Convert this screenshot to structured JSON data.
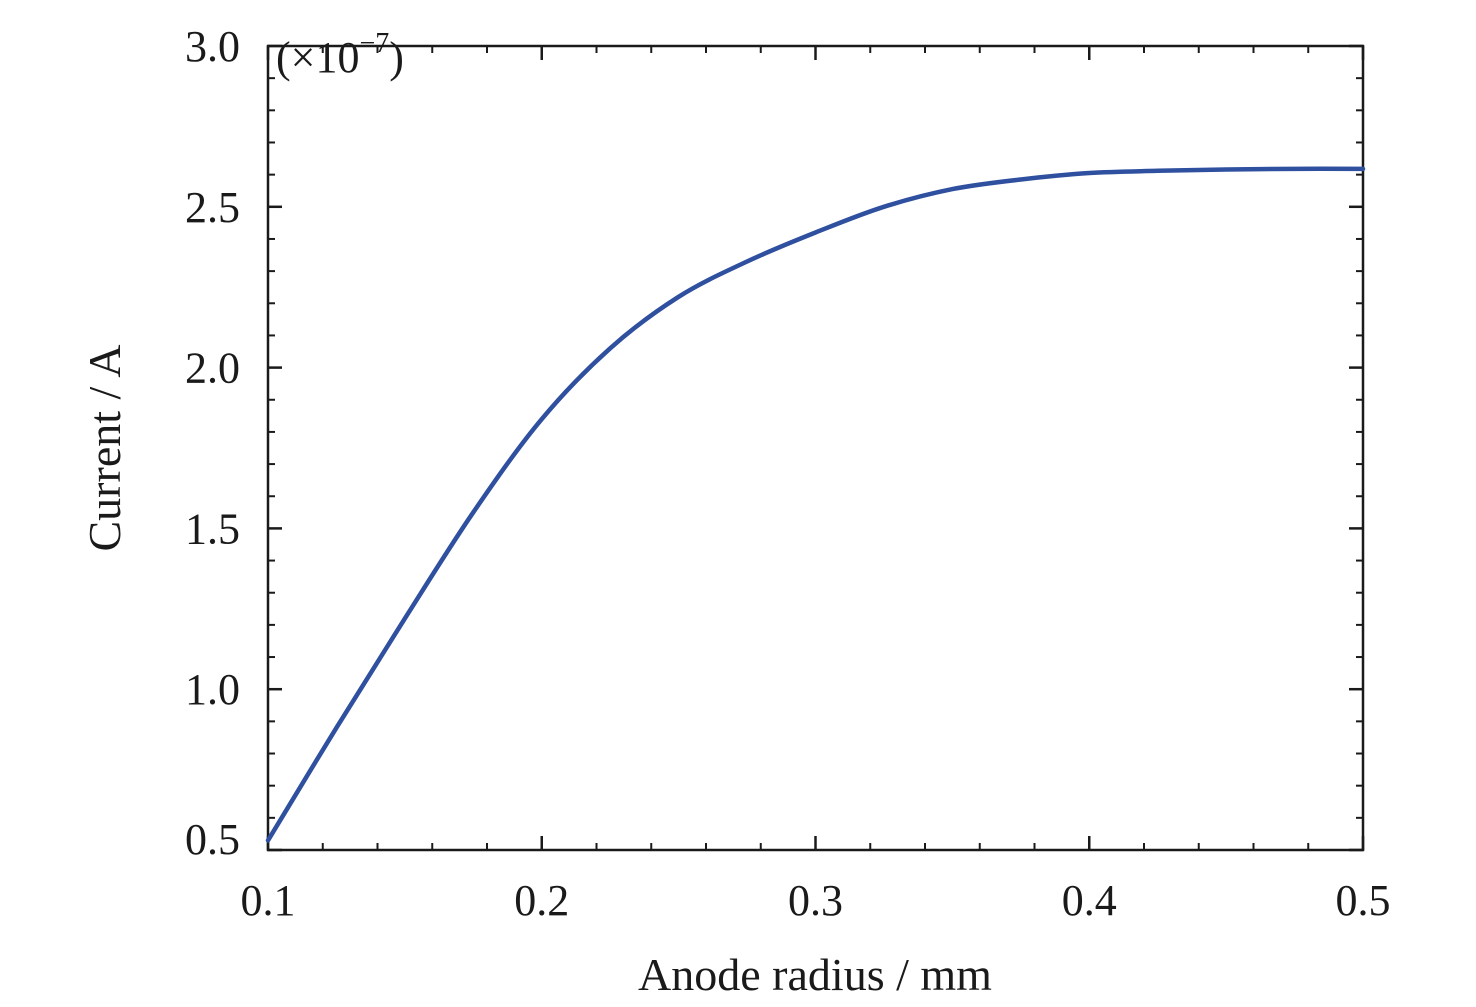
{
  "chart_data": {
    "type": "line",
    "title": "",
    "xlabel": "Anode radius / mm",
    "ylabel": "Current / A",
    "y_multiplier": {
      "prefix": "(×10",
      "exponent": "−7",
      "suffix": ")"
    },
    "xlim": [
      0.1,
      0.5
    ],
    "ylim": [
      0.5,
      3.0
    ],
    "x_ticks": [
      0.1,
      0.2,
      0.3,
      0.4,
      0.5
    ],
    "x_tick_labels": [
      "0.1",
      "0.2",
      "0.3",
      "0.4",
      "0.5"
    ],
    "y_ticks": [
      0.5,
      1.0,
      1.5,
      2.0,
      2.5,
      3.0
    ],
    "y_tick_labels": [
      "0.5",
      "1.0",
      "1.5",
      "2.0",
      "2.5",
      "3.0"
    ],
    "x_minor_step": 0.02,
    "y_minor_step": 0.1,
    "grid": false,
    "legend": "none",
    "series": [
      {
        "color": "#2f4f9f",
        "x": [
          0.1,
          0.125,
          0.15,
          0.175,
          0.2,
          0.225,
          0.25,
          0.275,
          0.3,
          0.325,
          0.35,
          0.375,
          0.4,
          0.425,
          0.45,
          0.475,
          0.5
        ],
        "y": [
          0.53,
          0.88,
          1.22,
          1.55,
          1.84,
          2.06,
          2.22,
          2.33,
          2.42,
          2.5,
          2.555,
          2.585,
          2.605,
          2.612,
          2.616,
          2.618,
          2.618
        ]
      }
    ]
  }
}
